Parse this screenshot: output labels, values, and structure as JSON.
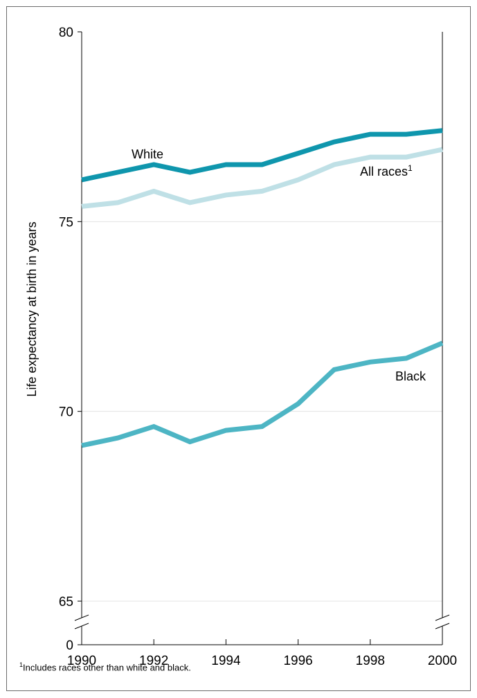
{
  "chart_data": {
    "type": "line",
    "ylabel": "Life expectancy at birth in years",
    "xlabel": "",
    "x": [
      1990,
      1991,
      1992,
      1993,
      1994,
      1995,
      1996,
      1997,
      1998,
      1999,
      2000
    ],
    "xticks": [
      "1990",
      "1992",
      "1994",
      "1996",
      "1998",
      "2000"
    ],
    "yticks": [
      "80",
      "75",
      "70",
      "65",
      "0"
    ],
    "ylim": [
      65,
      80
    ],
    "axis_break": true,
    "grid": true,
    "series": [
      {
        "name": "White",
        "color": "#0f96ad",
        "values": [
          76.1,
          76.3,
          76.5,
          76.3,
          76.5,
          76.5,
          76.8,
          77.1,
          77.3,
          77.3,
          77.4
        ]
      },
      {
        "name": "All races",
        "name_sup": "1",
        "color": "#bfe0e6",
        "values": [
          75.4,
          75.5,
          75.8,
          75.5,
          75.7,
          75.8,
          76.1,
          76.5,
          76.7,
          76.7,
          76.9
        ]
      },
      {
        "name": "Black",
        "color": "#4db5c4",
        "values": [
          69.1,
          69.3,
          69.6,
          69.2,
          69.5,
          69.6,
          70.2,
          71.1,
          71.3,
          71.4,
          71.8
        ]
      }
    ],
    "footnote": {
      "marker": "1",
      "text": "Includes races other than white and black."
    }
  }
}
